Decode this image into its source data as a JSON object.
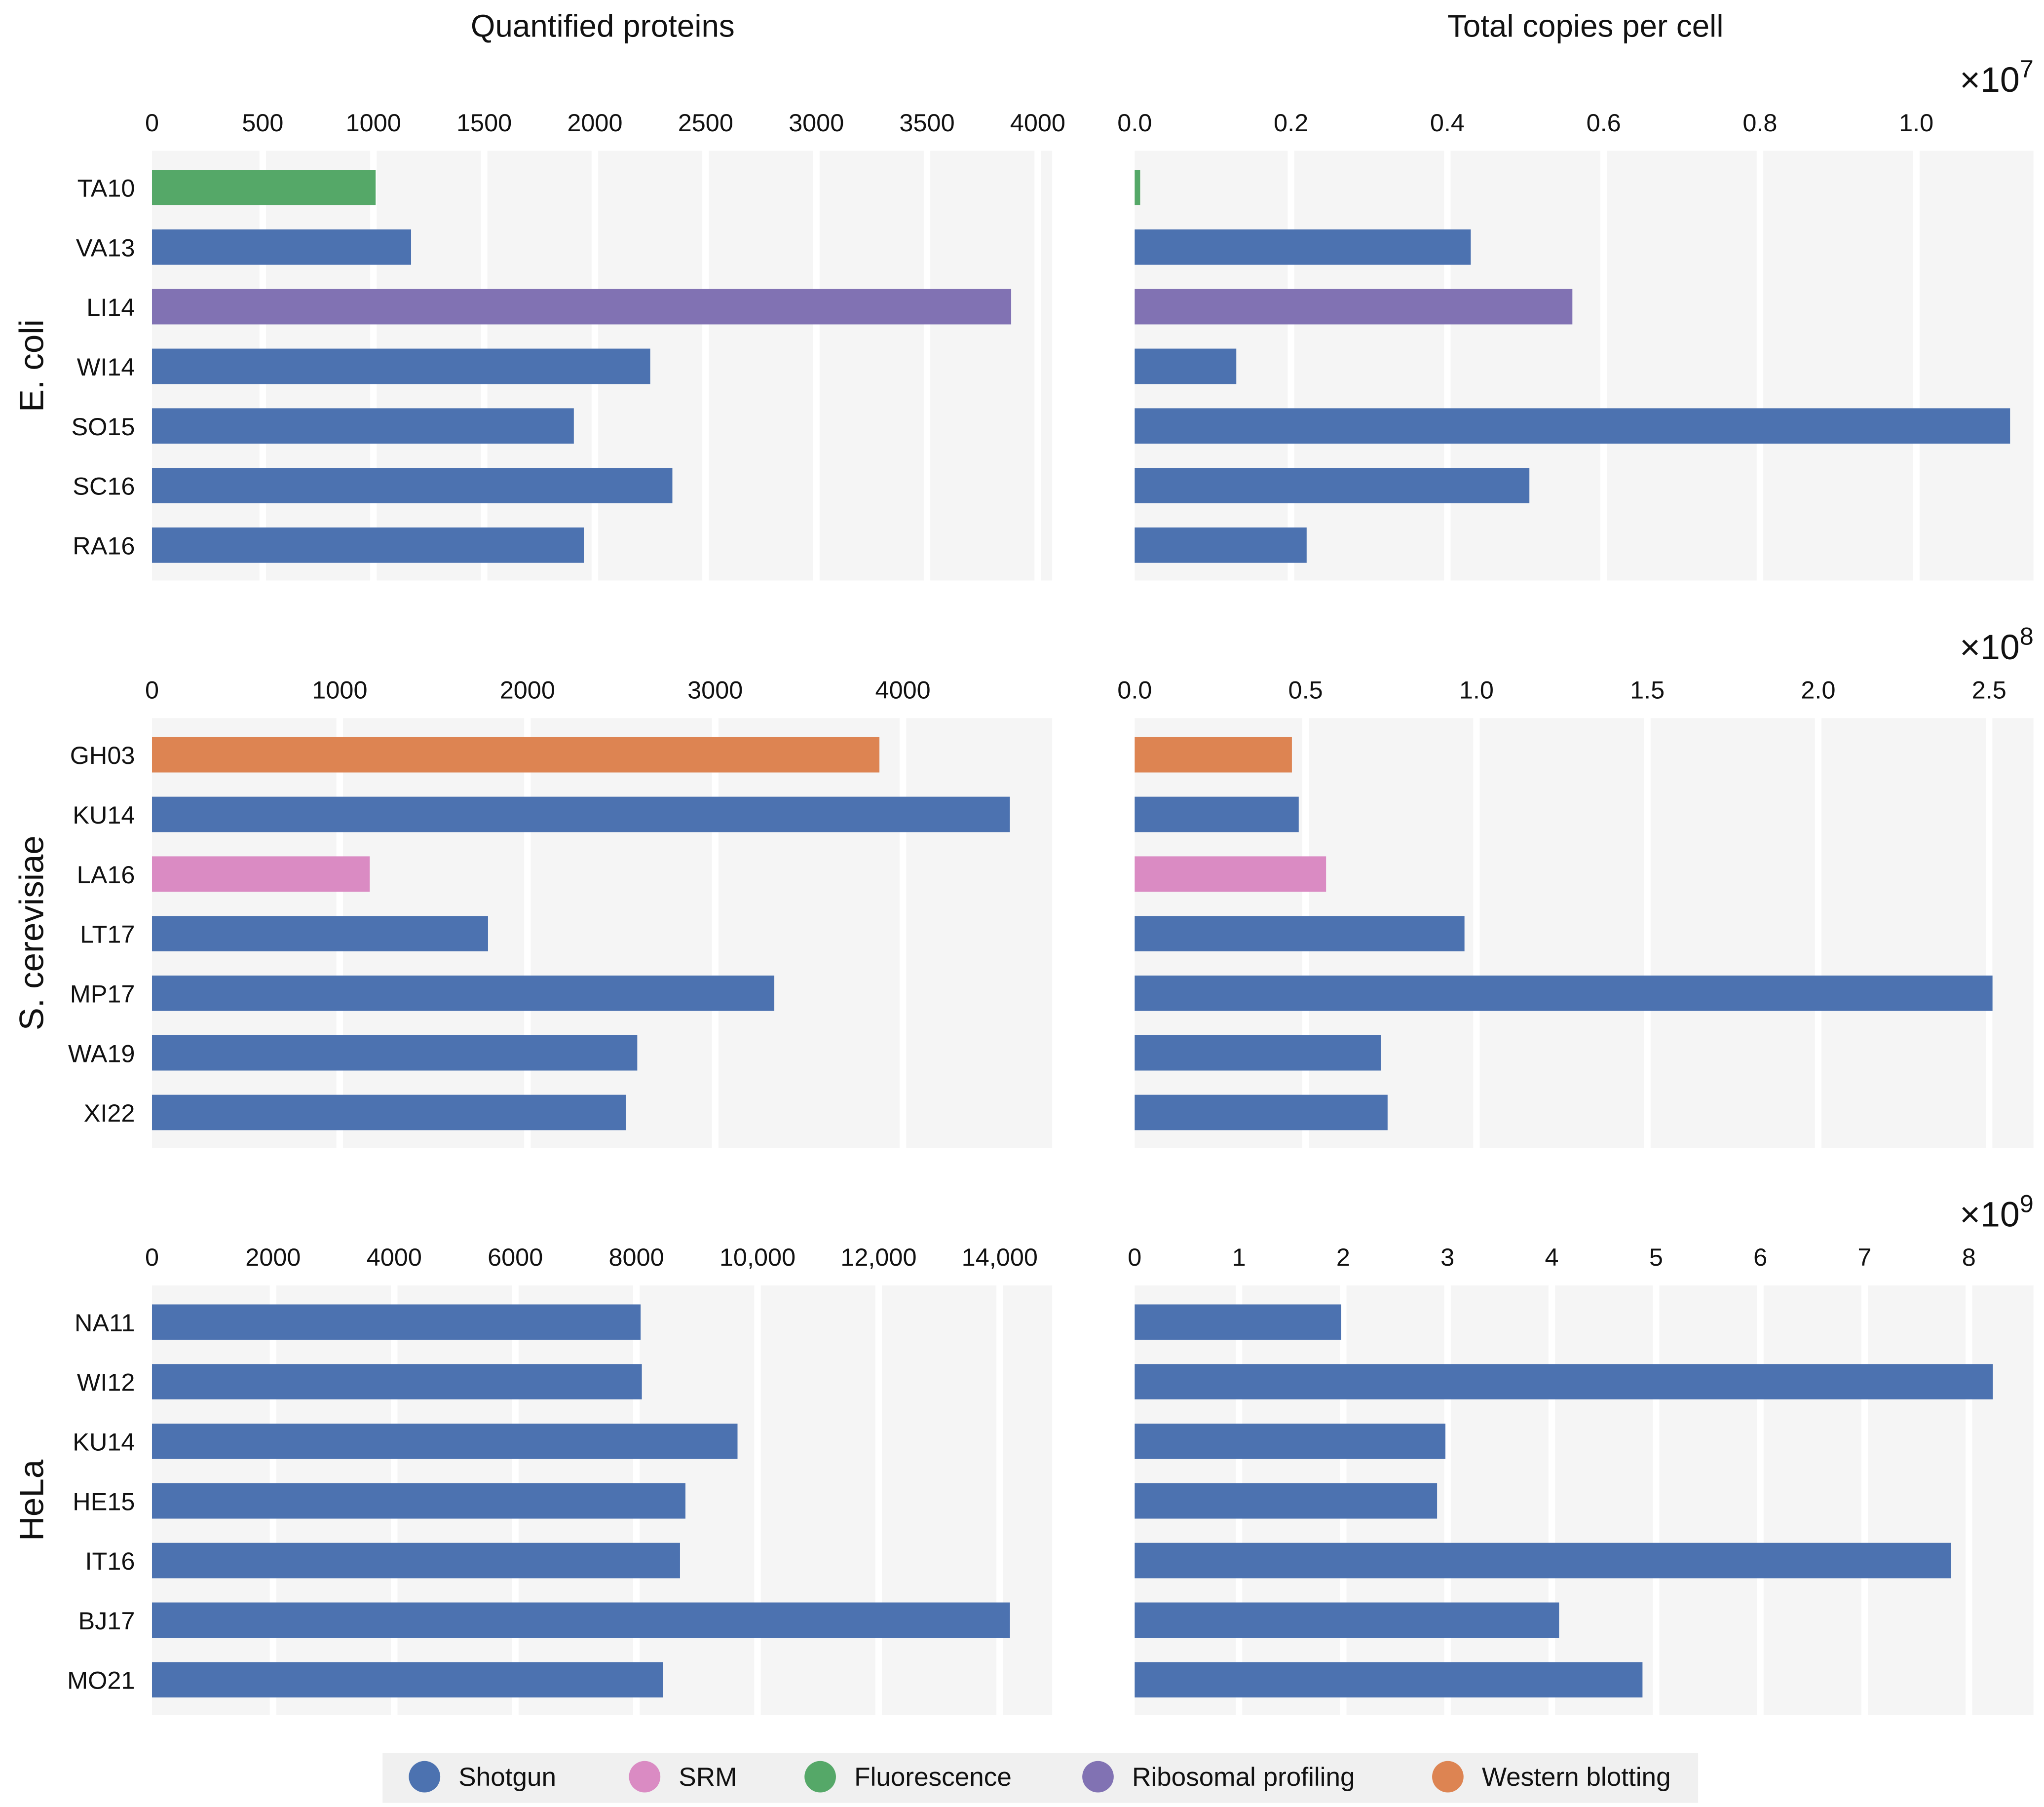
{
  "colors": {
    "Shotgun": "#4c72b0",
    "SRM": "#da8bc3",
    "Fluorescence": "#55a868",
    "Ribosomal profiling": "#8172b3",
    "Western blotting": "#dd8452"
  },
  "chart_data": {
    "type": "bar",
    "orientation": "horizontal",
    "column_titles": [
      "Quantified proteins",
      "Total copies per cell"
    ],
    "legend": {
      "placement": "bottom",
      "entries": [
        "Shotgun",
        "SRM",
        "Fluorescence",
        "Ribosomal profiling",
        "Western blotting"
      ]
    },
    "groups": [
      {
        "label": "E. coli",
        "categories": [
          "TA10",
          "VA13",
          "LI14",
          "WI14",
          "SO15",
          "SC16",
          "RA16"
        ],
        "methods": [
          "Fluorescence",
          "Shotgun",
          "Ribosomal profiling",
          "Shotgun",
          "Shotgun",
          "Shotgun",
          "Shotgun"
        ],
        "proteins": {
          "values": [
            1010,
            1170,
            3880,
            2250,
            1905,
            2350,
            1950
          ],
          "xlim": [
            0,
            4065
          ],
          "ticks": [
            0,
            500,
            1000,
            1500,
            2000,
            2500,
            3000,
            3500,
            4000
          ],
          "tick_labels": [
            "0",
            "500",
            "1000",
            "1500",
            "2000",
            "2500",
            "3000",
            "3500",
            "4000"
          ]
        },
        "copies": {
          "multiplier_base": "×10",
          "multiplier_exp": "7",
          "values": [
            0.007,
            0.43,
            0.56,
            0.13,
            1.12,
            0.505,
            0.22
          ],
          "xlim": [
            0,
            1.15
          ],
          "ticks": [
            0,
            0.2,
            0.4,
            0.6,
            0.8,
            1.0
          ],
          "tick_labels": [
            "0.0",
            "0.2",
            "0.4",
            "0.6",
            "0.8",
            "1.0"
          ]
        }
      },
      {
        "label": "S. cerevisiae",
        "categories": [
          "GH03",
          "KU14",
          "LA16",
          "LT17",
          "MP17",
          "WA19",
          "XI22"
        ],
        "methods": [
          "Western blotting",
          "Shotgun",
          "SRM",
          "Shotgun",
          "Shotgun",
          "Shotgun",
          "Shotgun"
        ],
        "proteins": {
          "values": [
            3875,
            4570,
            1160,
            1790,
            3315,
            2585,
            2525
          ],
          "xlim": [
            0,
            4795
          ],
          "ticks": [
            0,
            1000,
            2000,
            3000,
            4000
          ],
          "tick_labels": [
            "0",
            "1000",
            "2000",
            "3000",
            "4000"
          ]
        },
        "copies": {
          "multiplier_base": "×10",
          "multiplier_exp": "8",
          "values": [
            0.46,
            0.48,
            0.56,
            0.965,
            2.51,
            0.72,
            0.74
          ],
          "xlim": [
            0,
            2.63
          ],
          "ticks": [
            0,
            0.5,
            1.0,
            1.5,
            2.0,
            2.5
          ],
          "tick_labels": [
            "0.0",
            "0.5",
            "1.0",
            "1.5",
            "2.0",
            "2.5"
          ]
        }
      },
      {
        "label": "HeLa",
        "categories": [
          "NA11",
          "WI12",
          "KU14",
          "HE15",
          "IT16",
          "BJ17",
          "MO21"
        ],
        "methods": [
          "Shotgun",
          "Shotgun",
          "Shotgun",
          "Shotgun",
          "Shotgun",
          "Shotgun",
          "Shotgun"
        ],
        "proteins": {
          "values": [
            8070,
            8090,
            9670,
            8810,
            8720,
            14170,
            8440
          ],
          "xlim": [
            0,
            14866
          ],
          "ticks": [
            0,
            2000,
            4000,
            6000,
            8000,
            10000,
            12000,
            14000
          ],
          "tick_labels": [
            "0",
            "2000",
            "4000",
            "6000",
            "8000",
            "10,000",
            "12,000",
            "14,000"
          ]
        },
        "copies": {
          "multiplier_base": "×10",
          "multiplier_exp": "9",
          "values": [
            1.98,
            8.23,
            2.98,
            2.9,
            7.83,
            4.07,
            4.87
          ],
          "xlim": [
            0,
            8.62
          ],
          "ticks": [
            0,
            1,
            2,
            3,
            4,
            5,
            6,
            7,
            8
          ],
          "tick_labels": [
            "0",
            "1",
            "2",
            "3",
            "4",
            "5",
            "6",
            "7",
            "8"
          ]
        }
      }
    ]
  }
}
